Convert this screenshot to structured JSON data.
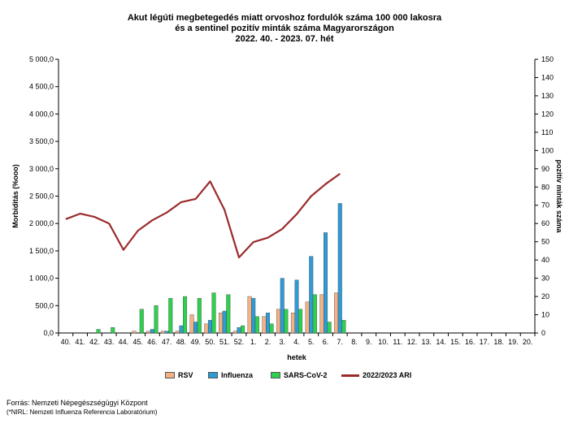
{
  "chart_data": {
    "type": "bar",
    "title_lines": [
      "Akut légúti megbetegedés miatt orvoshoz fordulók száma 100 000 lakosra",
      "és a sentinel pozitív minták száma Magyarországon",
      "2022. 40. - 2023. 07. hét"
    ],
    "xlabel": "hetek",
    "ylabel_left": "Morbiditás (%ooo)",
    "ylabel_right": "pozitív minták száma",
    "ylim_left": [
      0,
      5000
    ],
    "ylim_right": [
      0,
      150
    ],
    "yticks_left": [
      "0,0",
      "500,0",
      "1 000,0",
      "1 500,0",
      "2 000,0",
      "2 500,0",
      "3 000,0",
      "3 500,0",
      "4 000,0",
      "4 500,0",
      "5 000,0"
    ],
    "yticks_right": [
      "0",
      "10",
      "20",
      "30",
      "40",
      "50",
      "60",
      "70",
      "80",
      "90",
      "100",
      "110",
      "120",
      "130",
      "140",
      "150"
    ],
    "categories": [
      "40.",
      "41.",
      "42.",
      "43.",
      "44.",
      "45.",
      "46.",
      "47.",
      "48.",
      "49.",
      "50.",
      "51.",
      "52.",
      "1.",
      "2.",
      "3.",
      "4.",
      "5.",
      "6.",
      "7.",
      "8.",
      "9.",
      "10.",
      "11.",
      "12.",
      "13.",
      "14.",
      "15.",
      "16.",
      "17.",
      "18.",
      "19.",
      "20."
    ],
    "bar_series": [
      {
        "name": "RSV",
        "axis": "right",
        "color": "#F4B183",
        "values": [
          0,
          0,
          0,
          0,
          0,
          1,
          1,
          1,
          1,
          10,
          5,
          11,
          1,
          20,
          9,
          13,
          11,
          17,
          21,
          22,
          null,
          null,
          null,
          null,
          null,
          null,
          null,
          null,
          null,
          null,
          null,
          null,
          null
        ]
      },
      {
        "name": "Influenza",
        "axis": "right",
        "color": "#2E9BD6",
        "values": [
          0,
          0,
          0,
          0,
          0,
          0,
          2,
          1,
          4,
          6,
          7,
          12,
          3,
          19,
          11,
          30,
          29,
          42,
          55,
          71,
          null,
          null,
          null,
          null,
          null,
          null,
          null,
          null,
          null,
          null,
          null,
          null,
          null
        ]
      },
      {
        "name": "SARS-CoV-2",
        "axis": "right",
        "color": "#2ED14E",
        "values": [
          0,
          0,
          2,
          3,
          0,
          13,
          15,
          19,
          20,
          19,
          22,
          21,
          4,
          9,
          5,
          13,
          13,
          21,
          6,
          7,
          null,
          null,
          null,
          null,
          null,
          null,
          null,
          null,
          null,
          null,
          null,
          null,
          null
        ]
      }
    ],
    "line_series": [
      {
        "name": "2022/2023 ARI",
        "axis": "left",
        "color": "#9B2B2B",
        "values": [
          2080,
          2180,
          2120,
          2000,
          1520,
          1870,
          2060,
          2200,
          2390,
          2450,
          2770,
          2250,
          1380,
          1660,
          1740,
          1900,
          2170,
          2500,
          2720,
          2910,
          null,
          null,
          null,
          null,
          null,
          null,
          null,
          null,
          null,
          null,
          null,
          null,
          null
        ]
      }
    ],
    "legend": [
      "RSV",
      "Influenza",
      "SARS-CoV-2",
      "2022/2023 ARI"
    ],
    "legend_position": "bottom",
    "grid": false
  },
  "source": {
    "line1": "Forrás: Nemzeti Népegészségügyi Központ",
    "line2": "(*NIRL: Nemzeti Influenza Referencia Laboratórium)"
  }
}
